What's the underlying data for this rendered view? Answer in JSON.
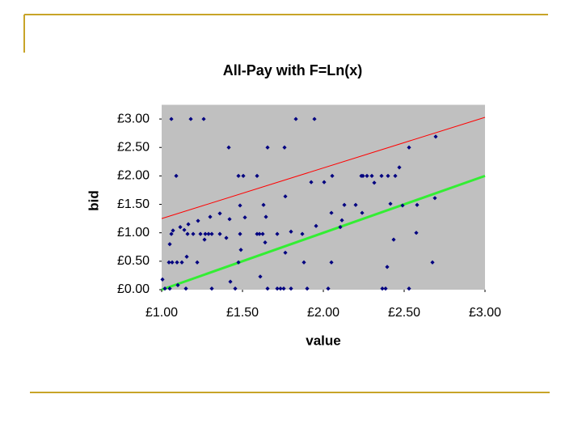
{
  "chart_data": {
    "type": "scatter",
    "title": "All-Pay with F=Ln(x)",
    "xlabel": "value",
    "ylabel": "bid",
    "xlim": [
      1,
      3
    ],
    "ylim": [
      0,
      3.25
    ],
    "xticks": [
      {
        "value": 1,
        "label": "£1.00"
      },
      {
        "value": 1.5,
        "label": "£1.50"
      },
      {
        "value": 2,
        "label": "£2.00"
      },
      {
        "value": 2.5,
        "label": "£2.50"
      },
      {
        "value": 3,
        "label": "£3.00"
      }
    ],
    "yticks": [
      {
        "value": 0,
        "label": "£0.00"
      },
      {
        "value": 0.5,
        "label": "£0.50"
      },
      {
        "value": 1,
        "label": "£1.00"
      },
      {
        "value": 1.5,
        "label": "£1.50"
      },
      {
        "value": 2,
        "label": "£2.00"
      },
      {
        "value": 2.5,
        "label": "£2.50"
      },
      {
        "value": 3,
        "label": "£3.00"
      }
    ],
    "plot_background": "#c0c0c0",
    "series": [
      {
        "color": "#000080",
        "x": [
          1.06,
          1.18,
          1.26,
          1.83,
          1.945,
          1.415,
          1.655,
          1.76,
          2.53,
          2.695,
          1.09,
          1.475,
          1.505,
          1.59,
          2.055,
          2.235,
          2.245,
          2.27,
          2.3,
          2.36,
          2.4,
          2.445,
          2.47,
          1.925,
          2.005,
          2.315,
          1.765,
          2.13,
          2.2,
          2.415,
          2.49,
          2.58,
          2.69,
          1.63,
          1.485,
          1.36,
          1.3,
          1.225,
          1.165,
          1.115,
          1.07,
          1.42,
          1.515,
          1.645,
          2.05,
          2.24,
          2.115,
          2.105,
          1.955,
          1.195,
          1.24,
          1.27,
          1.29,
          1.31,
          1.36,
          1.485,
          1.59,
          1.605,
          1.625,
          1.715,
          1.87,
          1.06,
          1.16,
          1.14,
          1.4,
          1.265,
          1.49,
          1.05,
          2.435,
          2.575,
          1.8,
          1.64,
          1.045,
          1.065,
          1.095,
          1.125,
          1.22,
          1.475,
          1.88,
          2.05,
          2.675,
          1.155,
          2.395,
          1.61,
          1.425,
          1.765,
          1.02,
          1.05,
          1.15,
          1.31,
          1.455,
          1.655,
          1.715,
          1.735,
          1.755,
          1.8,
          1.9,
          2.03,
          2.365,
          2.385,
          2.53,
          1.005,
          1.1
        ],
        "values": [
          3,
          3,
          3,
          3,
          3,
          2.5,
          2.5,
          2.5,
          2.5,
          2.69,
          2,
          2,
          2,
          2,
          2,
          2,
          2,
          2,
          2,
          2,
          2,
          2,
          2.15,
          1.89,
          1.89,
          1.88,
          1.64,
          1.49,
          1.49,
          1.51,
          1.48,
          1.49,
          1.61,
          1.49,
          1.48,
          1.34,
          1.28,
          1.21,
          1.15,
          1.1,
          1.04,
          1.24,
          1.27,
          1.28,
          1.35,
          1.35,
          1.22,
          1.1,
          1.12,
          0.98,
          0.98,
          0.98,
          0.98,
          0.98,
          0.98,
          0.98,
          0.98,
          0.98,
          0.98,
          0.98,
          0.98,
          0.98,
          0.98,
          1.05,
          0.91,
          0.88,
          0.7,
          0.8,
          0.88,
          1,
          1.02,
          0.83,
          0.48,
          0.48,
          0.48,
          0.48,
          0.48,
          0.48,
          0.48,
          0.48,
          0.48,
          0.58,
          0.4,
          0.23,
          0.14,
          0.65,
          0.02,
          0.02,
          0.02,
          0.02,
          0.02,
          0.02,
          0.02,
          0.02,
          0.02,
          0.02,
          0.02,
          0.02,
          0.02,
          0.02,
          0.02,
          0.18,
          0.08
        ]
      }
    ],
    "lines": [
      {
        "color": "#ff0000",
        "x": [
          1,
          3
        ],
        "values": [
          1.25,
          3.03
        ]
      },
      {
        "color": "#33ee33",
        "x": [
          1,
          3
        ],
        "values": [
          0,
          2
        ]
      }
    ]
  }
}
